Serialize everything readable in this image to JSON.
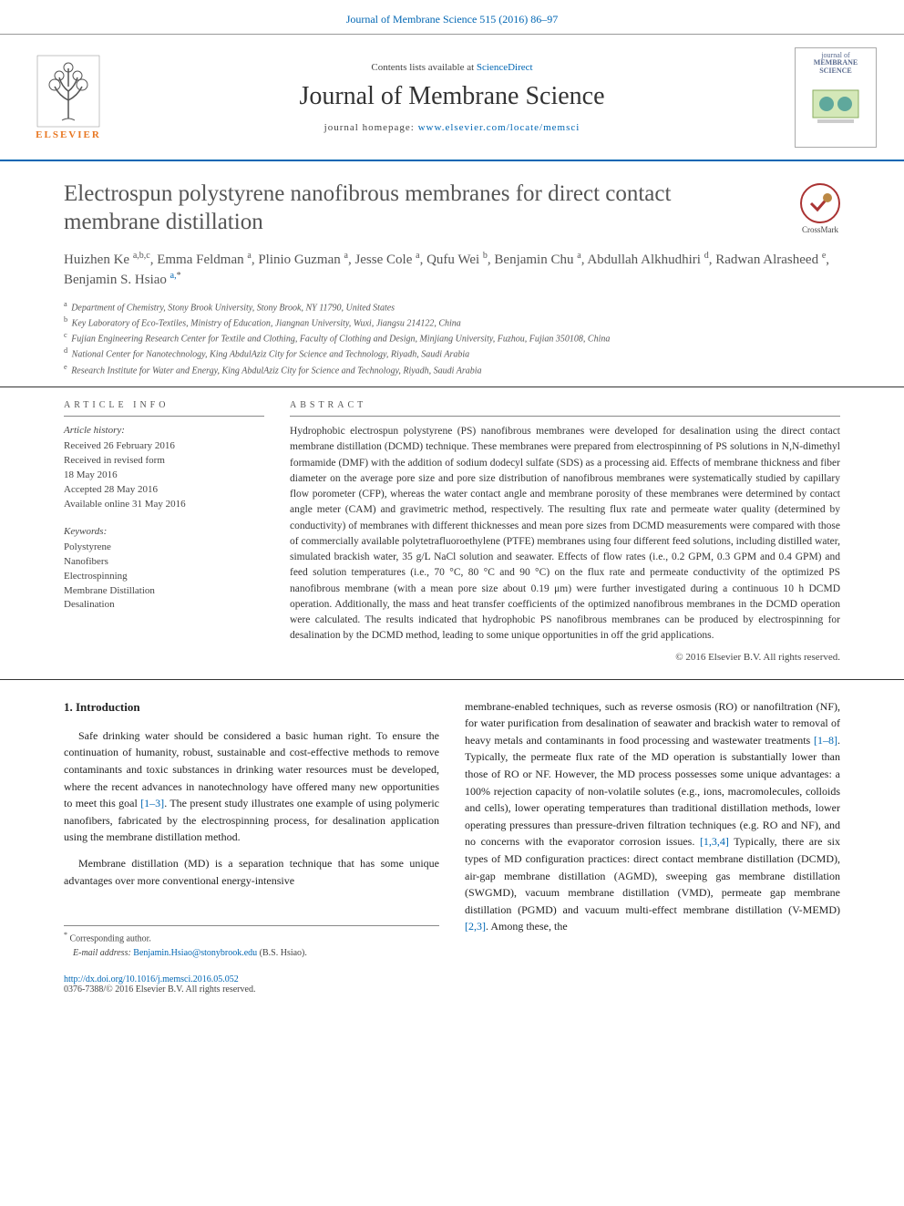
{
  "topbar": {
    "journal_ref": "Journal of Membrane Science 515 (2016) 86–97"
  },
  "masthead": {
    "contents_prefix": "Contents lists available at ",
    "contents_link": "ScienceDirect",
    "journal_title": "Journal of Membrane Science",
    "homepage_prefix": "journal homepage: ",
    "homepage_url": "www.elsevier.com/locate/memsci",
    "publisher_word": "ELSEVIER",
    "cover_title_1": "journal of",
    "cover_title_2": "MEMBRANE",
    "cover_title_3": "SCIENCE"
  },
  "crossmark": {
    "label": "CrossMark"
  },
  "article": {
    "title": "Electrospun polystyrene nanofibrous membranes for direct contact membrane distillation",
    "authors_html": "Huizhen Ke <sup>a,b,c</sup>, Emma Feldman <sup>a</sup>, Plinio Guzman <sup>a</sup>, Jesse Cole <sup>a</sup>, Qufu Wei <sup>b</sup>, Benjamin Chu <sup>a</sup>, Abdullah Alkhudhiri <sup>d</sup>, Radwan Alrasheed <sup>e</sup>, Benjamin S. Hsiao <sup><a class='link'>a,</a>*</sup>",
    "affiliations": [
      "Department of Chemistry, Stony Brook University, Stony Brook, NY 11790, United States",
      "Key Laboratory of Eco-Textiles, Ministry of Education, Jiangnan University, Wuxi, Jiangsu 214122, China",
      "Fujian Engineering Research Center for Textile and Clothing, Faculty of Clothing and Design, Minjiang University, Fuzhou, Fujian 350108, China",
      "National Center for Nanotechnology, King AbdulAziz City for Science and Technology, Riyadh, Saudi Arabia",
      "Research Institute for Water and Energy, King AbdulAziz City for Science and Technology, Riyadh, Saudi Arabia"
    ],
    "aff_labels": [
      "a",
      "b",
      "c",
      "d",
      "e"
    ]
  },
  "meta": {
    "info_label": "article info",
    "history_label": "Article history:",
    "history": [
      "Received 26 February 2016",
      "Received in revised form",
      "18 May 2016",
      "Accepted 28 May 2016",
      "Available online 31 May 2016"
    ],
    "keywords_label": "Keywords:",
    "keywords": [
      "Polystyrene",
      "Nanofibers",
      "Electrospinning",
      "Membrane Distillation",
      "Desalination"
    ]
  },
  "abstract": {
    "label": "abstract",
    "text": "Hydrophobic electrospun polystyrene (PS) nanofibrous membranes were developed for desalination using the direct contact membrane distillation (DCMD) technique. These membranes were prepared from electrospinning of PS solutions in N,N-dimethyl formamide (DMF) with the addition of sodium dodecyl sulfate (SDS) as a processing aid. Effects of membrane thickness and fiber diameter on the average pore size and pore size distribution of nanofibrous membranes were systematically studied by capillary flow porometer (CFP), whereas the water contact angle and membrane porosity of these membranes were determined by contact angle meter (CAM) and gravimetric method, respectively. The resulting flux rate and permeate water quality (determined by conductivity) of membranes with different thicknesses and mean pore sizes from DCMD measurements were compared with those of commercially available polytetrafluoroethylene (PTFE) membranes using four different feed solutions, including distilled water, simulated brackish water, 35 g/L NaCl solution and seawater. Effects of flow rates (i.e., 0.2 GPM, 0.3 GPM and 0.4 GPM) and feed solution temperatures (i.e., 70 °C, 80 °C and 90 °C) on the flux rate and permeate conductivity of the optimized PS nanofibrous membrane (with a mean pore size about 0.19 μm) were further investigated during a continuous 10 h DCMD operation. Additionally, the mass and heat transfer coefficients of the optimized nanofibrous membranes in the DCMD operation were calculated. The results indicated that hydrophobic PS nanofibrous membranes can be produced by electrospinning for desalination by the DCMD method, leading to some unique opportunities in off the grid applications.",
    "copyright": "© 2016 Elsevier B.V. All rights reserved."
  },
  "body": {
    "heading": "1. Introduction",
    "col1_p1": "Safe drinking water should be considered a basic human right. To ensure the continuation of humanity, robust, sustainable and cost-effective methods to remove contaminants and toxic substances in drinking water resources must be developed, where the recent advances in nanotechnology have offered many new opportunities to meet this goal [1–3]. The present study illustrates one example of using polymeric nanofibers, fabricated by the electrospinning process, for desalination application using the membrane distillation method.",
    "col1_p2": "Membrane distillation (MD) is a separation technique that has some unique advantages over more conventional energy-intensive",
    "col2_p1": "membrane-enabled techniques, such as reverse osmosis (RO) or nanofiltration (NF), for water purification from desalination of seawater and brackish water to removal of heavy metals and contaminants in food processing and wastewater treatments [1–8]. Typically, the permeate flux rate of the MD operation is substantially lower than those of RO or NF. However, the MD process possesses some unique advantages: a 100% rejection capacity of non-volatile solutes (e.g., ions, macromolecules, colloids and cells), lower operating temperatures than traditional distillation methods, lower operating pressures than pressure-driven filtration techniques (e.g. RO and NF), and no concerns with the evaporator corrosion issues. [1,3,4] Typically, there are six types of MD configuration practices: direct contact membrane distillation (DCMD), air-gap membrane distillation (AGMD), sweeping gas membrane distillation (SWGMD), vacuum membrane distillation (VMD), permeate gap membrane distillation (PGMD) and vacuum multi-effect membrane distillation (V-MEMD) [2,3]. Among these, the",
    "refs_col1": {
      "r1": "[1–3]"
    },
    "refs_col2": {
      "r1": "[1–8]",
      "r2": "[1,3,4]",
      "r3": "[2,3]"
    }
  },
  "footnote": {
    "corr": "Corresponding author.",
    "email_label": "E-mail address: ",
    "email": "Benjamin.Hsiao@stonybrook.edu",
    "email_suffix": " (B.S. Hsiao)."
  },
  "footer": {
    "doi": "http://dx.doi.org/10.1016/j.memsci.2016.05.052",
    "issn_line": "0376-7388/© 2016 Elsevier B.V. All rights reserved."
  },
  "colors": {
    "link": "#0066b3",
    "accent": "#e87722",
    "text": "#2a2a2a",
    "rule": "#333333"
  }
}
